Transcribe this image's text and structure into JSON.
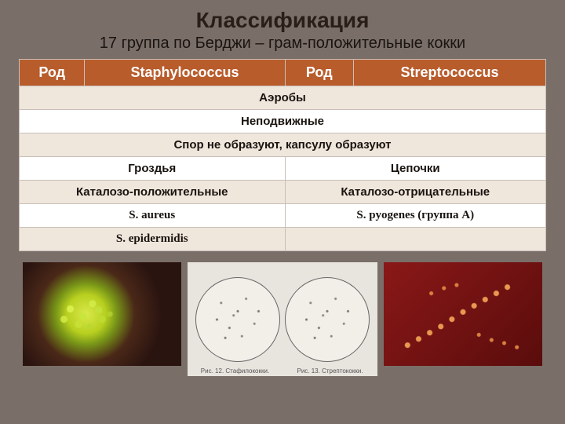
{
  "title": {
    "text": "Классификация",
    "fontsize": 28,
    "color": "#2a1e18"
  },
  "subtitle": {
    "text": "17 группа по Берджи – грам-положительные кокки",
    "fontsize": 20,
    "color": "#1a1410"
  },
  "table": {
    "header_bg": "#b85c2c",
    "header_color": "#ffffff",
    "row_bg_alt": "#efe6dc",
    "row_bg": "#ffffff",
    "border_color": "#c9bfb8",
    "fontsize_header": 18,
    "fontsize_body": 15,
    "header": [
      {
        "label": "Род"
      },
      {
        "label": "Staphylococcus"
      },
      {
        "label": "Род"
      },
      {
        "label": "Streptococcus"
      }
    ],
    "shared_rows": [
      "Аэробы",
      "Неподвижные",
      "Спор не образуют, капсулу образуют"
    ],
    "split_rows": [
      {
        "left": "Гроздья",
        "right": "Цепочки"
      },
      {
        "left": "Каталозо-положительные",
        "right": "Каталозо-отрицательные"
      },
      {
        "left": "S. aureus",
        "right": "S. pyogenes (группа А)",
        "species": true
      },
      {
        "left": "S. epidermidis",
        "right": "",
        "species": true
      }
    ]
  },
  "images": {
    "left_caption_a": "Рис. 12. Стафилококки.",
    "left_caption_b": "Рис. 13. Стрептококки."
  }
}
